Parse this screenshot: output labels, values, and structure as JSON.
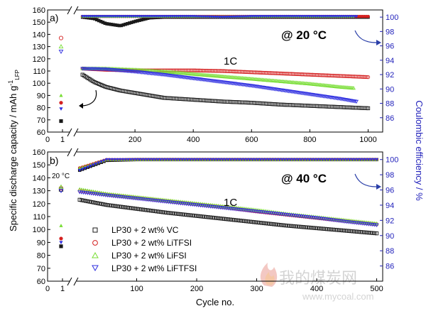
{
  "watermark": {
    "brand": "我的煤炭网",
    "url": "www.mycoal.com"
  },
  "shared": {
    "ylabel_left": "Specific discharge capacity / mAh g",
    "ylabel_left_sup": "-1",
    "ylabel_left_sub": "LFP",
    "ylabel_right": "Coulombic efficiency / %",
    "xlabel": "Cycle no."
  },
  "colors": {
    "VC": "#1a1a1a",
    "LiTFSI": "#d42020",
    "LiFSI": "#77dd33",
    "LiFTFSI": "#2f2fe0",
    "ce_axis": "#2222bb",
    "arrow": "#2a3fa8"
  },
  "chart_data": [
    {
      "type": "scatter",
      "panel_label": "a)",
      "temperature": "@ 20 °C",
      "rate_label": "1C",
      "xlim": [
        0,
        1050
      ],
      "x_tick_labels": [
        "0",
        "1",
        "200",
        "400",
        "600",
        "800",
        "1000"
      ],
      "ylim_left": [
        60,
        160
      ],
      "y_ticks_left": [
        60,
        70,
        80,
        90,
        100,
        110,
        120,
        130,
        140,
        150,
        160
      ],
      "ylim_right": [
        84,
        101
      ],
      "y_ticks_right": [
        86,
        88,
        90,
        92,
        94,
        96,
        98,
        100
      ],
      "grid": false,
      "formation_cycles": [
        {
          "name": "VC",
          "values": [
            69
          ]
        },
        {
          "name": "LiTFSI",
          "values": [
            137,
            84
          ]
        },
        {
          "name": "LiFSI",
          "values": [
            130,
            90
          ]
        },
        {
          "name": "LiFTFSI",
          "values": [
            126,
            79
          ]
        }
      ],
      "series": [
        {
          "name": "LP30 + 2 wt% VC",
          "marker": "square",
          "x": [
            20,
            60,
            100,
            150,
            200,
            250,
            300,
            400,
            500,
            600,
            700,
            800,
            900,
            1000
          ],
          "capacity": [
            107,
            101,
            97,
            94,
            92,
            90,
            88,
            86.5,
            85,
            84,
            82.5,
            81.5,
            80.5,
            79.5
          ],
          "coulombic_efficiency": [
            99.9,
            99.7,
            99.0,
            98.7,
            99.3,
            99.8,
            99.9,
            99.9,
            99.9,
            99.9,
            99.9,
            99.9,
            99.9,
            99.9
          ]
        },
        {
          "name": "LP30 + 2 wt% LiTFSI",
          "marker": "circle",
          "x": [
            20,
            100,
            200,
            300,
            400,
            500,
            600,
            700,
            800,
            900,
            1000
          ],
          "capacity": [
            112,
            111,
            110.5,
            110.5,
            110.5,
            110,
            109,
            108,
            107,
            106,
            105
          ],
          "coulombic_efficiency": [
            100,
            100,
            100,
            100,
            100,
            100,
            100,
            100,
            100,
            100,
            100
          ]
        },
        {
          "name": "LP30 + 2 wt% LiFSI",
          "marker": "triangle-up",
          "x": [
            20,
            100,
            200,
            300,
            400,
            500,
            600,
            700,
            800,
            900,
            950
          ],
          "capacity": [
            112,
            112,
            111,
            109.5,
            107.5,
            105.5,
            103.5,
            101.5,
            99.5,
            97,
            96
          ],
          "coulombic_efficiency": [
            100,
            100,
            100,
            100,
            100,
            100,
            100,
            100,
            100,
            100,
            100
          ]
        },
        {
          "name": "LP30 + 2 wt% LiFTFSI",
          "marker": "triangle-down",
          "x": [
            20,
            100,
            200,
            300,
            400,
            500,
            600,
            700,
            800,
            900,
            960
          ],
          "capacity": [
            112,
            111.5,
            109.5,
            107,
            104,
            101,
            98,
            94.5,
            91,
            87.5,
            85
          ],
          "coulombic_efficiency": [
            100,
            100,
            100,
            100,
            100,
            99.9,
            100,
            100,
            100,
            100,
            100
          ]
        }
      ]
    },
    {
      "type": "scatter",
      "panel_label": "b)",
      "temperature": "@ 40 °C",
      "formation_label": "20 °C",
      "rate_label": "1C",
      "xlim": [
        0,
        510
      ],
      "x_tick_labels": [
        "0",
        "1",
        "100",
        "200",
        "300",
        "400",
        "500"
      ],
      "ylim_left": [
        60,
        160
      ],
      "y_ticks_left": [
        60,
        70,
        80,
        90,
        100,
        110,
        120,
        130,
        140,
        150,
        160
      ],
      "ylim_right": [
        84,
        101
      ],
      "y_ticks_right": [
        86,
        88,
        90,
        92,
        94,
        96,
        98,
        100
      ],
      "grid": false,
      "formation_cycles": [
        {
          "name": "VC",
          "values": [
            131,
            87
          ]
        },
        {
          "name": "LiTFSI",
          "values": [
            132,
            93
          ]
        },
        {
          "name": "LiFSI",
          "values": [
            133,
            103
          ]
        },
        {
          "name": "LiFTFSI",
          "values": [
            130,
            90
          ]
        }
      ],
      "legend": {
        "placement": "bottom-left",
        "entries": [
          "LP30 + 2 wt% VC",
          "LP30 + 2 wt% LiTFSI",
          "LP30 + 2 wt% LiFSI",
          "LP30 + 2 wt% LiFTFSI"
        ]
      },
      "series": [
        {
          "name": "LP30 + 2 wt% VC",
          "marker": "square",
          "x": [
            5,
            50,
            100,
            150,
            200,
            250,
            300,
            350,
            400,
            450,
            500
          ],
          "capacity": [
            123,
            119,
            116,
            113,
            110.5,
            108,
            105.5,
            103,
            101,
            99,
            97
          ],
          "coulombic_efficiency": [
            98.5,
            99.8,
            99.9,
            99.9,
            99.9,
            99.9,
            99.9,
            99.9,
            99.9,
            99.9,
            99.9
          ]
        },
        {
          "name": "LP30 + 2 wt% LiTFSI",
          "marker": "circle",
          "x": [
            5,
            50,
            100,
            150,
            200,
            250,
            300,
            350,
            400,
            450,
            500
          ],
          "capacity": [
            130,
            127,
            124.5,
            122,
            119.5,
            117,
            114,
            111.5,
            109,
            106.5,
            104
          ],
          "coulombic_efficiency": [
            98.8,
            99.9,
            99.9,
            99.9,
            99.9,
            99.9,
            99.9,
            99.9,
            99.9,
            99.9,
            99.9
          ]
        },
        {
          "name": "LP30 + 2 wt% LiFSI",
          "marker": "triangle-up",
          "x": [
            5,
            50,
            100,
            150,
            200,
            250,
            300,
            350,
            400,
            450,
            500
          ],
          "capacity": [
            131,
            127.5,
            125,
            122.5,
            120,
            117.5,
            115,
            112,
            109.5,
            107,
            104.5
          ],
          "coulombic_efficiency": [
            98.8,
            99.9,
            99.9,
            99.9,
            99.9,
            99.9,
            99.9,
            99.9,
            99.9,
            99.9,
            99.9
          ]
        },
        {
          "name": "LP30 + 2 wt% LiFTFSI",
          "marker": "triangle-down",
          "x": [
            5,
            50,
            100,
            150,
            200,
            250,
            300,
            350,
            400,
            450,
            500
          ],
          "capacity": [
            129,
            126.5,
            124,
            121.5,
            119,
            116.5,
            114,
            111.5,
            109,
            106,
            103.5
          ],
          "coulombic_efficiency": [
            98.5,
            99.9,
            99.9,
            99.9,
            99.9,
            99.9,
            99.9,
            99.9,
            99.9,
            99.9,
            99.9
          ]
        }
      ]
    }
  ]
}
